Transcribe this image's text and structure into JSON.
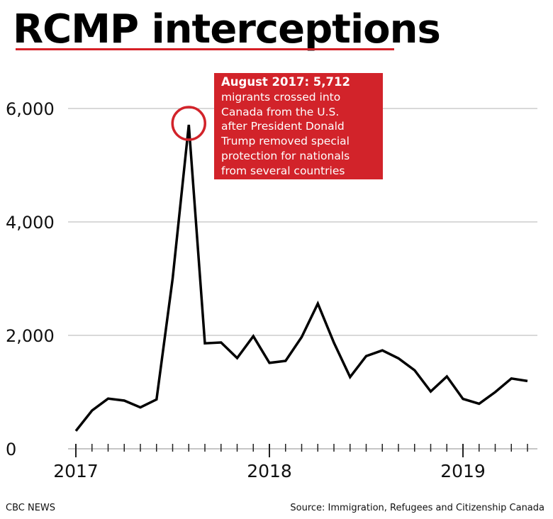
{
  "title": "RCMP interceptions",
  "annotation": {
    "headline": "August 2017: 5,712",
    "lines": [
      "migrants crossed into",
      "Canada from the U.S.",
      "after President Donald",
      "Trump removed special",
      "protection for nationals",
      "from several countries"
    ]
  },
  "footer": {
    "credit": "CBC NEWS",
    "source": "Source: Immigration, Refugees and Citizenship Canada"
  },
  "colors": {
    "accent": "#d2232a",
    "line": "#000000",
    "grid": "#b3b3b3"
  },
  "chart_data": {
    "type": "line",
    "title": "RCMP interceptions",
    "xlabel": "",
    "ylabel": "",
    "ylim": [
      0,
      6000
    ],
    "yticks": [
      0,
      2000,
      4000,
      6000
    ],
    "ytick_labels": [
      "0",
      "2,000",
      "4,000",
      "6,000"
    ],
    "xtick_labels": [
      "2017",
      "2018",
      "2019"
    ],
    "grid": true,
    "x": [
      "2017-01",
      "2017-02",
      "2017-03",
      "2017-04",
      "2017-05",
      "2017-06",
      "2017-07",
      "2017-08",
      "2017-09",
      "2017-10",
      "2017-11",
      "2017-12",
      "2018-01",
      "2018-02",
      "2018-03",
      "2018-04",
      "2018-05",
      "2018-06",
      "2018-07",
      "2018-08",
      "2018-09",
      "2018-10",
      "2018-11",
      "2018-12",
      "2019-01",
      "2019-02",
      "2019-03",
      "2019-04",
      "2019-05"
    ],
    "series": [
      {
        "values": [
          315,
          675,
          885,
          850,
          730,
          870,
          3000,
          5712,
          1860,
          1875,
          1600,
          1985,
          1515,
          1550,
          1970,
          2560,
          1870,
          1265,
          1635,
          1735,
          1595,
          1385,
          1010,
          1275,
          880,
          795,
          1000,
          1240,
          1195
        ]
      }
    ],
    "highlight": {
      "x": "2017-08",
      "value": 5712
    }
  }
}
